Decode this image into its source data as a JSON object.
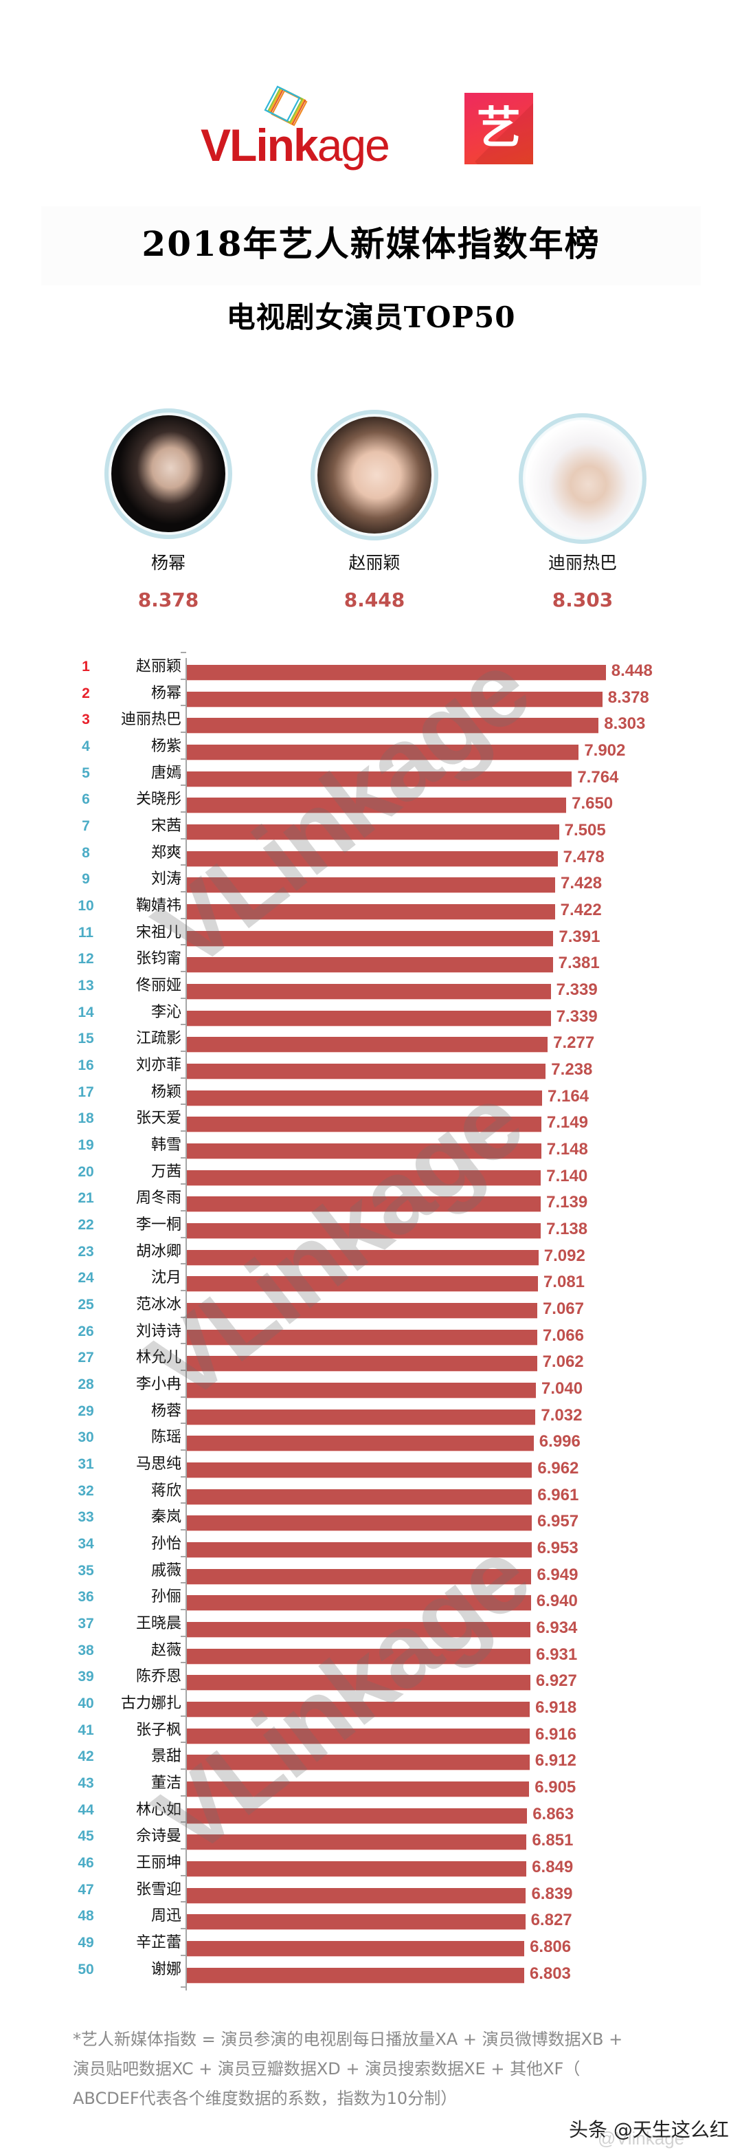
{
  "header": {
    "brand_bold": "VLink",
    "brand_light": "age",
    "partner_char": "艺",
    "title": "2018年艺人新媒体指数年榜",
    "subtitle": "电视剧女演员TOP50"
  },
  "podium": [
    {
      "position": "left",
      "rank": 2,
      "name": "杨幂",
      "score": "8.378"
    },
    {
      "position": "center",
      "rank": 1,
      "name": "赵丽颖",
      "score": "8.448"
    },
    {
      "position": "right",
      "rank": 3,
      "name": "迪丽热巴",
      "score": "8.303"
    }
  ],
  "colors": {
    "bar": "#c0504d",
    "value_text": "#c0504d",
    "rank_top3": "#e8202a",
    "rank_other": "#4bacc6",
    "brand_red": "#d0191f"
  },
  "watermark": "VLinkage",
  "footer": {
    "note_line1": "*艺人新媒体指数 = 演员参演的电视剧每日播放量XA + 演员微博数据XB +",
    "note_line2": "演员贴吧数据XC + 演员豆瓣数据XD + 演员搜索数据XE + 其他XF（",
    "note_line3": "ABCDEF代表各个维度数据的系数，指数为10分制）",
    "credit": "头条 @天生这么红",
    "credit_faded": "@Vlinkage"
  },
  "chart_data": {
    "type": "bar",
    "orientation": "horizontal",
    "title": "2018年艺人新媒体指数年榜 电视剧女演员TOP50",
    "xlabel": "",
    "ylabel": "",
    "grid": false,
    "legend": null,
    "xlim": [
      0,
      8.448
    ],
    "categories": [
      "赵丽颖",
      "杨幂",
      "迪丽热巴",
      "杨紫",
      "唐嫣",
      "关晓彤",
      "宋茜",
      "郑爽",
      "刘涛",
      "鞠婧祎",
      "宋祖儿",
      "张钧甯",
      "佟丽娅",
      "李沁",
      "江疏影",
      "刘亦菲",
      "杨颖",
      "张天爱",
      "韩雪",
      "万茜",
      "周冬雨",
      "李一桐",
      "胡冰卿",
      "沈月",
      "范冰冰",
      "刘诗诗",
      "林允儿",
      "李小冉",
      "杨蓉",
      "陈瑶",
      "马思纯",
      "蒋欣",
      "秦岚",
      "孙怡",
      "戚薇",
      "孙俪",
      "王晓晨",
      "赵薇",
      "陈乔恩",
      "古力娜扎",
      "张子枫",
      "景甜",
      "董洁",
      "林心如",
      "佘诗曼",
      "王丽坤",
      "张雪迎",
      "周迅",
      "辛芷蕾",
      "谢娜"
    ],
    "values": [
      8.448,
      8.378,
      8.303,
      7.902,
      7.764,
      7.65,
      7.505,
      7.478,
      7.428,
      7.422,
      7.391,
      7.381,
      7.339,
      7.339,
      7.277,
      7.238,
      7.164,
      7.149,
      7.148,
      7.14,
      7.139,
      7.138,
      7.092,
      7.081,
      7.067,
      7.066,
      7.062,
      7.04,
      7.032,
      6.996,
      6.962,
      6.961,
      6.957,
      6.953,
      6.949,
      6.94,
      6.934,
      6.931,
      6.927,
      6.918,
      6.916,
      6.912,
      6.905,
      6.863,
      6.851,
      6.849,
      6.839,
      6.827,
      6.806,
      6.803
    ],
    "rows": [
      {
        "rank": "1",
        "name": "赵丽颖",
        "value": "8.448"
      },
      {
        "rank": "2",
        "name": "杨幂",
        "value": "8.378"
      },
      {
        "rank": "3",
        "name": "迪丽热巴",
        "value": "8.303"
      },
      {
        "rank": "4",
        "name": "杨紫",
        "value": "7.902"
      },
      {
        "rank": "5",
        "name": "唐嫣",
        "value": "7.764"
      },
      {
        "rank": "6",
        "name": "关晓彤",
        "value": "7.650"
      },
      {
        "rank": "7",
        "name": "宋茜",
        "value": "7.505"
      },
      {
        "rank": "8",
        "name": "郑爽",
        "value": "7.478"
      },
      {
        "rank": "9",
        "name": "刘涛",
        "value": "7.428"
      },
      {
        "rank": "10",
        "name": "鞠婧祎",
        "value": "7.422"
      },
      {
        "rank": "11",
        "name": "宋祖儿",
        "value": "7.391"
      },
      {
        "rank": "12",
        "name": "张钧甯",
        "value": "7.381"
      },
      {
        "rank": "13",
        "name": "佟丽娅",
        "value": "7.339"
      },
      {
        "rank": "14",
        "name": "李沁",
        "value": "7.339"
      },
      {
        "rank": "15",
        "name": "江疏影",
        "value": "7.277"
      },
      {
        "rank": "16",
        "name": "刘亦菲",
        "value": "7.238"
      },
      {
        "rank": "17",
        "name": "杨颖",
        "value": "7.164"
      },
      {
        "rank": "18",
        "name": "张天爱",
        "value": "7.149"
      },
      {
        "rank": "19",
        "name": "韩雪",
        "value": "7.148"
      },
      {
        "rank": "20",
        "name": "万茜",
        "value": "7.140"
      },
      {
        "rank": "21",
        "name": "周冬雨",
        "value": "7.139"
      },
      {
        "rank": "22",
        "name": "李一桐",
        "value": "7.138"
      },
      {
        "rank": "23",
        "name": "胡冰卿",
        "value": "7.092"
      },
      {
        "rank": "24",
        "name": "沈月",
        "value": "7.081"
      },
      {
        "rank": "25",
        "name": "范冰冰",
        "value": "7.067"
      },
      {
        "rank": "26",
        "name": "刘诗诗",
        "value": "7.066"
      },
      {
        "rank": "27",
        "name": "林允儿",
        "value": "7.062"
      },
      {
        "rank": "28",
        "name": "李小冉",
        "value": "7.040"
      },
      {
        "rank": "29",
        "name": "杨蓉",
        "value": "7.032"
      },
      {
        "rank": "30",
        "name": "陈瑶",
        "value": "6.996"
      },
      {
        "rank": "31",
        "name": "马思纯",
        "value": "6.962"
      },
      {
        "rank": "32",
        "name": "蒋欣",
        "value": "6.961"
      },
      {
        "rank": "33",
        "name": "秦岚",
        "value": "6.957"
      },
      {
        "rank": "34",
        "name": "孙怡",
        "value": "6.953"
      },
      {
        "rank": "35",
        "name": "戚薇",
        "value": "6.949"
      },
      {
        "rank": "36",
        "name": "孙俪",
        "value": "6.940"
      },
      {
        "rank": "37",
        "name": "王晓晨",
        "value": "6.934"
      },
      {
        "rank": "38",
        "name": "赵薇",
        "value": "6.931"
      },
      {
        "rank": "39",
        "name": "陈乔恩",
        "value": "6.927"
      },
      {
        "rank": "40",
        "name": "古力娜扎",
        "value": "6.918"
      },
      {
        "rank": "41",
        "name": "张子枫",
        "value": "6.916"
      },
      {
        "rank": "42",
        "name": "景甜",
        "value": "6.912"
      },
      {
        "rank": "43",
        "name": "董洁",
        "value": "6.905"
      },
      {
        "rank": "44",
        "name": "林心如",
        "value": "6.863"
      },
      {
        "rank": "45",
        "name": "佘诗曼",
        "value": "6.851"
      },
      {
        "rank": "46",
        "name": "王丽坤",
        "value": "6.849"
      },
      {
        "rank": "47",
        "name": "张雪迎",
        "value": "6.839"
      },
      {
        "rank": "48",
        "name": "周迅",
        "value": "6.827"
      },
      {
        "rank": "49",
        "name": "辛芷蕾",
        "value": "6.806"
      },
      {
        "rank": "50",
        "name": "谢娜",
        "value": "6.803"
      }
    ]
  }
}
